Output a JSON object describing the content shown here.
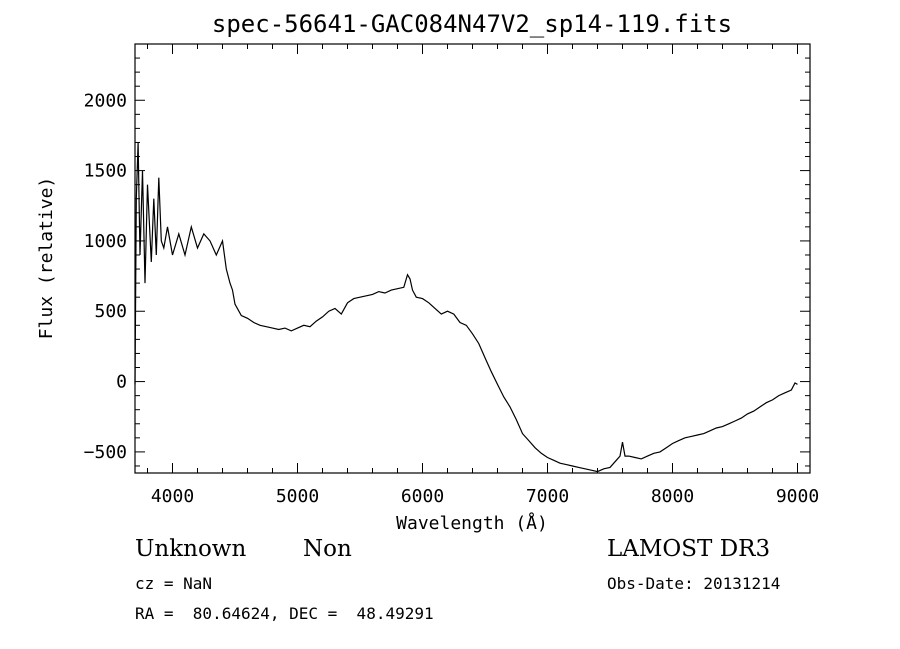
{
  "chart_data": {
    "type": "line",
    "title": "spec-56641-GAC084N47V2_sp14-119.fits",
    "xlabel": "Wavelength (Å)",
    "ylabel": "Flux (relative)",
    "xlim": [
      3700,
      9100
    ],
    "ylim": [
      -650,
      2400
    ],
    "xticks": [
      4000,
      5000,
      6000,
      7000,
      8000,
      9000
    ],
    "xtick_labels": [
      "4000",
      "5000",
      "6000",
      "7000",
      "8000",
      "9000"
    ],
    "yticks": [
      -500,
      0,
      500,
      1000,
      1500,
      2000
    ],
    "ytick_labels": [
      "−500",
      "0",
      "500",
      "1000",
      "1500",
      "2000"
    ],
    "grid": false,
    "color": "#000000",
    "series": [
      {
        "x": [
          3700,
          3710,
          3725,
          3740,
          3760,
          3780,
          3800,
          3830,
          3850,
          3870,
          3890,
          3910,
          3930,
          3960,
          4000,
          4050,
          4100,
          4150,
          4200,
          4250,
          4300,
          4350,
          4400,
          4430,
          4460,
          4480,
          4500,
          4550,
          4600,
          4650,
          4700,
          4750,
          4800,
          4850,
          4900,
          4950,
          5000,
          5050,
          5100,
          5150,
          5200,
          5250,
          5300,
          5350,
          5400,
          5450,
          5500,
          5550,
          5600,
          5650,
          5700,
          5750,
          5800,
          5850,
          5880,
          5900,
          5920,
          5950,
          6000,
          6050,
          6100,
          6150,
          6200,
          6250,
          6300,
          6350,
          6400,
          6450,
          6500,
          6550,
          6600,
          6650,
          6700,
          6750,
          6800,
          6850,
          6900,
          6950,
          7000,
          7050,
          7100,
          7150,
          7200,
          7250,
          7300,
          7350,
          7400,
          7450,
          7500,
          7550,
          7580,
          7600,
          7620,
          7650,
          7700,
          7750,
          7800,
          7850,
          7900,
          7950,
          8000,
          8050,
          8100,
          8150,
          8200,
          8250,
          8300,
          8350,
          8400,
          8450,
          8500,
          8550,
          8600,
          8650,
          8700,
          8750,
          8800,
          8850,
          8900,
          8950,
          8980,
          9000
        ],
        "y": [
          -20,
          1300,
          1700,
          900,
          1500,
          700,
          1400,
          850,
          1300,
          900,
          1450,
          1000,
          950,
          1100,
          900,
          1050,
          900,
          1100,
          950,
          1050,
          1000,
          900,
          1000,
          800,
          700,
          650,
          550,
          470,
          450,
          420,
          400,
          390,
          380,
          370,
          380,
          360,
          380,
          400,
          390,
          430,
          460,
          500,
          520,
          480,
          560,
          590,
          600,
          610,
          620,
          640,
          630,
          650,
          660,
          670,
          760,
          730,
          650,
          600,
          590,
          560,
          520,
          480,
          500,
          480,
          420,
          400,
          340,
          270,
          170,
          70,
          -20,
          -110,
          -180,
          -270,
          -370,
          -420,
          -470,
          -510,
          -540,
          -560,
          -580,
          -590,
          -600,
          -610,
          -620,
          -630,
          -640,
          -620,
          -610,
          -560,
          -530,
          -430,
          -530,
          -530,
          -540,
          -550,
          -530,
          -510,
          -500,
          -470,
          -440,
          -420,
          -400,
          -390,
          -380,
          -370,
          -350,
          -330,
          -320,
          -300,
          -280,
          -260,
          -230,
          -210,
          -180,
          -150,
          -130,
          -100,
          -80,
          -60,
          -10,
          -20
        ]
      }
    ]
  },
  "info": {
    "object_class": "Unknown",
    "object_subclass": "Non",
    "survey": "LAMOST DR3",
    "cz": "cz = NaN",
    "obs_date": "Obs-Date: 20131214",
    "coords": "RA =  80.64624, DEC =  48.49291"
  }
}
